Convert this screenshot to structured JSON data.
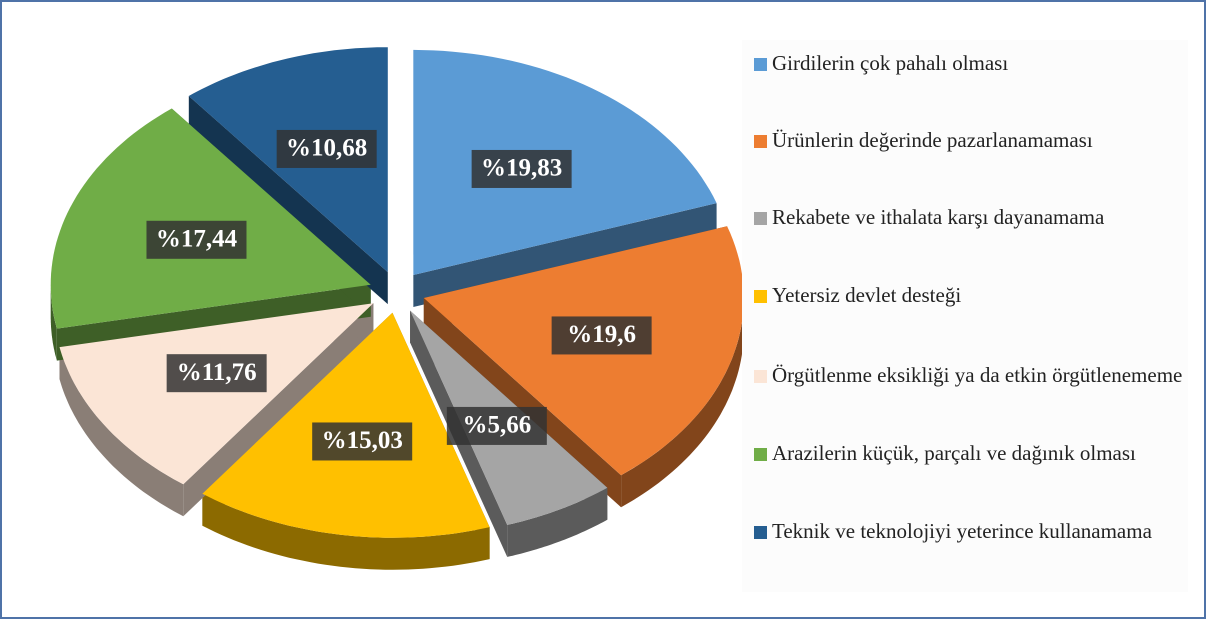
{
  "chart_data": {
    "type": "pie",
    "categories": [
      "Girdilerin çok pahalı olması",
      "Ürünlerin değerinde pazarlanamaması",
      "Rekabete ve ithalata karşı dayanamama",
      "Yetersiz devlet desteği",
      "Örgütlenme eksikliği ya da etkin örgütlenememe",
      "Arazilerin küçük, parçalı ve dağınık olması",
      "Teknik ve teknolojiyi yeterince kullanamama"
    ],
    "values": [
      19.83,
      19.6,
      5.66,
      15.03,
      11.76,
      17.44,
      10.68
    ],
    "value_labels": [
      "%19,83",
      "%19,6",
      "%5,66",
      "%15,03",
      "%11,76",
      "%17,44",
      "%10,68"
    ],
    "colors": [
      "#5b9bd5",
      "#ed7d31",
      "#a5a5a5",
      "#ffc000",
      "#fbe5d6",
      "#70ad47",
      "#255e91"
    ]
  }
}
